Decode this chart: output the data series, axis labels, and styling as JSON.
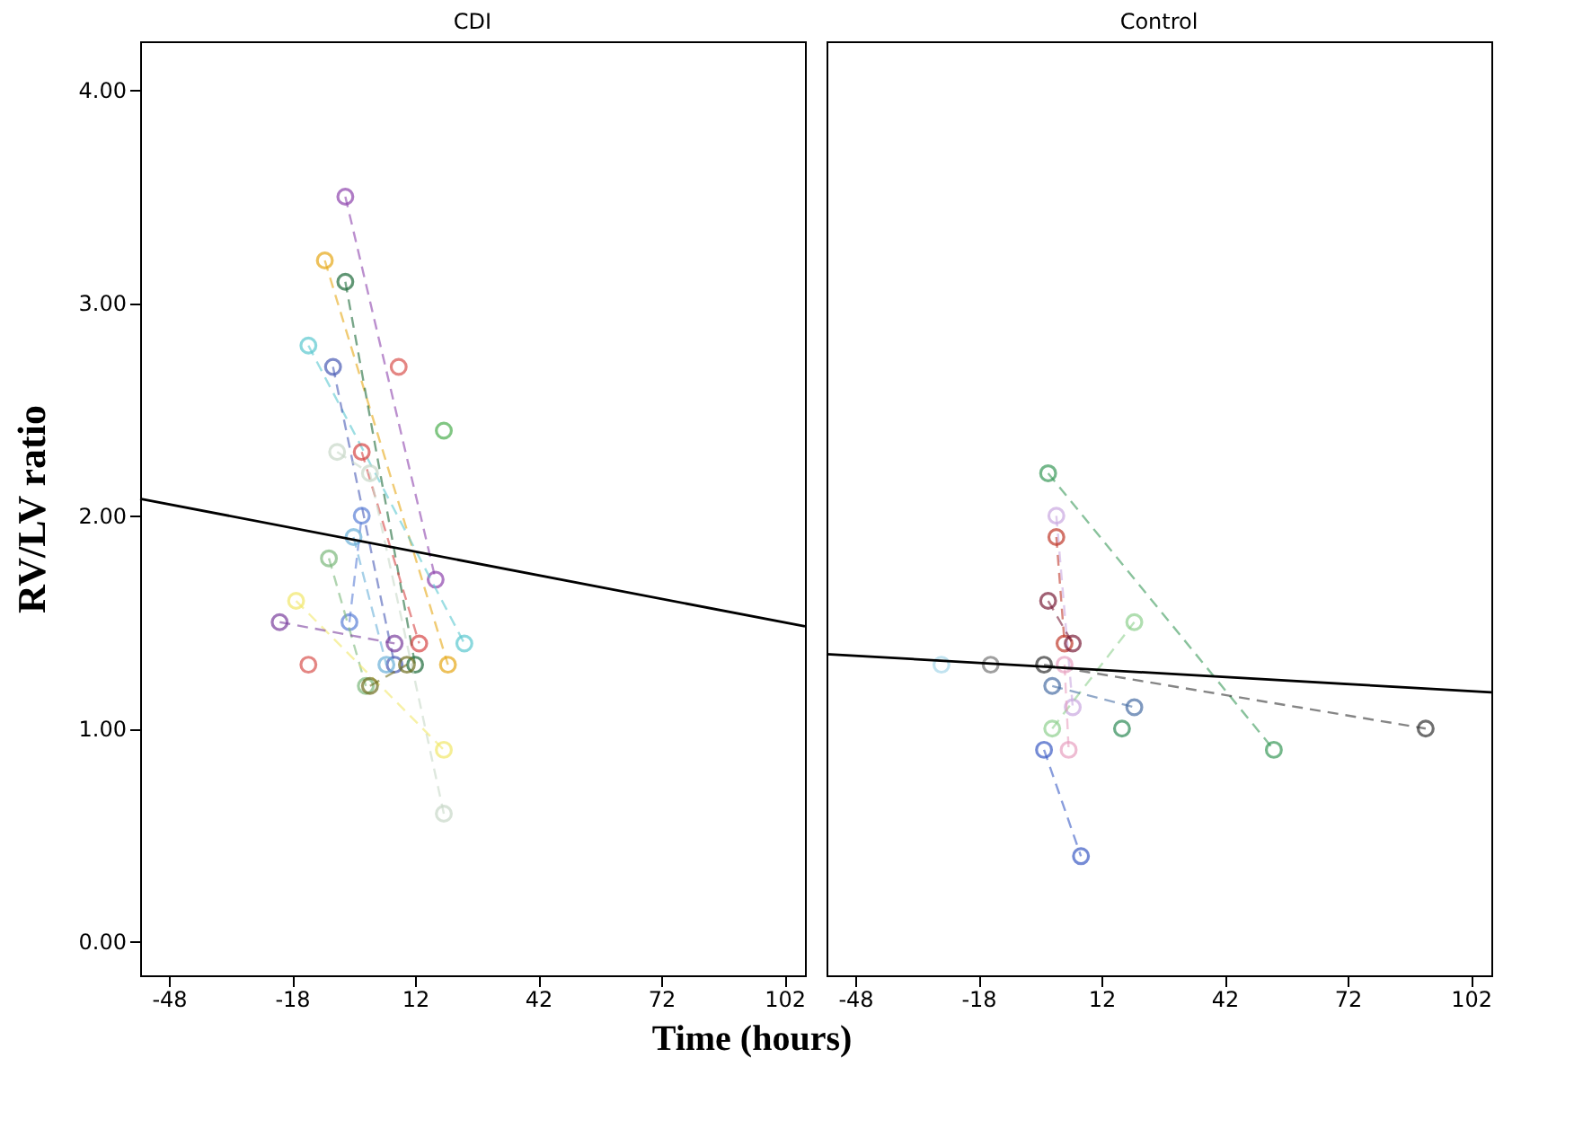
{
  "chart_data": [
    {
      "type": "line",
      "title": "CDI",
      "ylabel": "RV/LV ratio",
      "xlabel": "Time (hours)",
      "xlim": [
        -55,
        107
      ],
      "ylim": [
        -0.16,
        4.23
      ],
      "xticks": [
        -48,
        -18,
        12,
        42,
        72,
        102
      ],
      "yticks": [
        {
          "value": 0,
          "label": "0.00"
        },
        {
          "value": 1,
          "label": "1.00"
        },
        {
          "value": 2,
          "label": "2.00"
        },
        {
          "value": 3,
          "label": "3.00"
        },
        {
          "value": 4,
          "label": "4.00"
        }
      ],
      "grid": false,
      "marker": "circle",
      "line_style": "dashed",
      "series": [
        {
          "color": "#8e44ad",
          "x": [
            -5,
            17
          ],
          "values": [
            3.5,
            1.7
          ]
        },
        {
          "color": "#e6a817",
          "x": [
            -10,
            20
          ],
          "values": [
            3.2,
            1.3
          ]
        },
        {
          "color": "#1e6b3a",
          "x": [
            -5,
            12
          ],
          "values": [
            3.1,
            1.3
          ]
        },
        {
          "color": "#5bc8d0",
          "x": [
            -14,
            24
          ],
          "values": [
            2.8,
            1.4
          ]
        },
        {
          "color": "#4a5bb5",
          "x": [
            -8,
            7
          ],
          "values": [
            2.7,
            1.3
          ]
        },
        {
          "color": "#d9534f",
          "x": [
            8
          ],
          "values": [
            2.7
          ]
        },
        {
          "color": "#4caf50",
          "x": [
            19
          ],
          "values": [
            2.4
          ]
        },
        {
          "color": "#d64545",
          "x": [
            -1,
            13
          ],
          "values": [
            2.3,
            1.4
          ]
        },
        {
          "color": "#c8d8c8",
          "x": [
            -7,
            1,
            19
          ],
          "values": [
            2.3,
            2.2,
            0.6
          ]
        },
        {
          "color": "#5b7fd6",
          "x": [
            -1,
            -4
          ],
          "values": [
            2.0,
            1.5
          ]
        },
        {
          "color": "#6ab0d8",
          "x": [
            -3,
            5
          ],
          "values": [
            1.9,
            1.3
          ]
        },
        {
          "color": "#7cb87c",
          "x": [
            -9,
            0
          ],
          "values": [
            1.8,
            1.2
          ]
        },
        {
          "color": "#f2e86a",
          "x": [
            -17,
            19
          ],
          "values": [
            1.6,
            0.9
          ]
        },
        {
          "color": "#7b3f9e",
          "x": [
            -21,
            7
          ],
          "values": [
            1.5,
            1.4
          ]
        },
        {
          "color": "#d9534f",
          "x": [
            -14
          ],
          "values": [
            1.3
          ]
        },
        {
          "color": "#6f6f20",
          "x": [
            1,
            10
          ],
          "values": [
            1.2,
            1.3
          ]
        },
        {
          "color": "#000000",
          "type": "line",
          "marker": "none",
          "line_style": "solid",
          "x": [
            -55,
            107
          ],
          "values": [
            2.08,
            1.48
          ]
        }
      ]
    },
    {
      "type": "line",
      "title": "Control",
      "xlim": [
        -55,
        107
      ],
      "ylim": [
        -0.16,
        4.23
      ],
      "xticks": [
        -48,
        -18,
        12,
        42,
        72,
        102
      ],
      "tick_labels": "x",
      "grid": false,
      "marker": "circle",
      "line_style": "dashed",
      "series": [
        {
          "color": "#3a9a5a",
          "x": [
            -1,
            54
          ],
          "values": [
            2.2,
            0.9
          ]
        },
        {
          "color": "#c9a8e0",
          "x": [
            1,
            5
          ],
          "values": [
            2.0,
            1.1
          ]
        },
        {
          "color": "#c0392b",
          "x": [
            1,
            3
          ],
          "values": [
            1.9,
            1.4
          ]
        },
        {
          "color": "#7a1f3a",
          "x": [
            -1,
            5
          ],
          "values": [
            1.6,
            1.4
          ]
        },
        {
          "color": "#8fd18f",
          "x": [
            20,
            0
          ],
          "values": [
            1.5,
            1.0
          ]
        },
        {
          "color": "#333333",
          "x": [
            -2,
            91
          ],
          "values": [
            1.3,
            1.0
          ]
        },
        {
          "color": "#777777",
          "x": [
            -15
          ],
          "values": [
            1.3
          ]
        },
        {
          "color": "#a8d8ea",
          "x": [
            -27
          ],
          "values": [
            1.3
          ]
        },
        {
          "color": "#4a6fa5",
          "x": [
            0,
            20
          ],
          "values": [
            1.2,
            1.1
          ]
        },
        {
          "color": "#3b5bc4",
          "x": [
            -2,
            7
          ],
          "values": [
            0.9,
            0.4
          ]
        },
        {
          "color": "#2e8b57",
          "x": [
            17
          ],
          "values": [
            1.0
          ]
        },
        {
          "color": "#e8a0c0",
          "x": [
            3,
            4
          ],
          "values": [
            1.3,
            0.9
          ]
        },
        {
          "color": "#000000",
          "type": "line",
          "marker": "none",
          "line_style": "solid",
          "x": [
            -55,
            107
          ],
          "values": [
            1.35,
            1.17
          ]
        }
      ]
    }
  ]
}
